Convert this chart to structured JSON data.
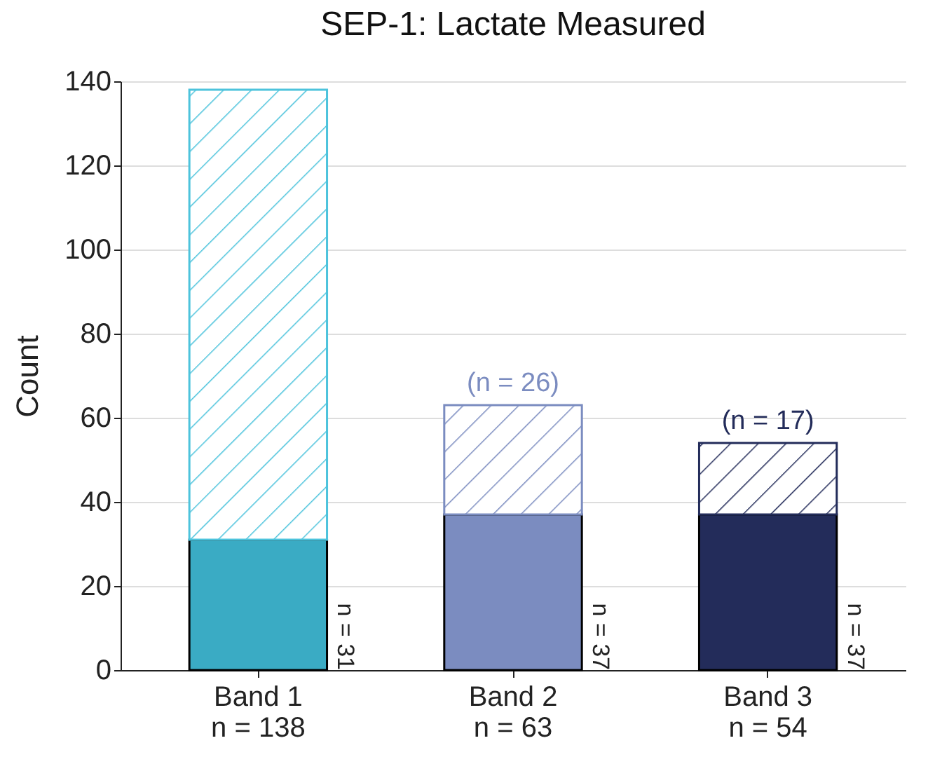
{
  "chart_data": {
    "type": "bar",
    "title": "SEP-1: Lactate Measured",
    "ylabel": "Count",
    "categories": [
      "Band 1\nn = 138",
      "Band 2\nn = 63",
      "Band 3\nn = 54"
    ],
    "stacked": true,
    "series": [
      {
        "colors": [
          "#3aabc4",
          "#7b8cc0",
          "#232c5a"
        ],
        "values": [
          31,
          37,
          37
        ],
        "value_labels": [
          "n = 31",
          "n = 37",
          "n = 37"
        ]
      },
      {
        "colors": [
          "#4cc3dc",
          "#7b8cc0",
          "#232c5a"
        ],
        "values": [
          107,
          26,
          17
        ],
        "value_labels": [
          null,
          "(n = 26)",
          "(n = 17)"
        ]
      }
    ],
    "ylim": [
      0,
      140
    ],
    "yticks": [
      0,
      20,
      40,
      60,
      80,
      100,
      120,
      140
    ],
    "grid": "y"
  }
}
